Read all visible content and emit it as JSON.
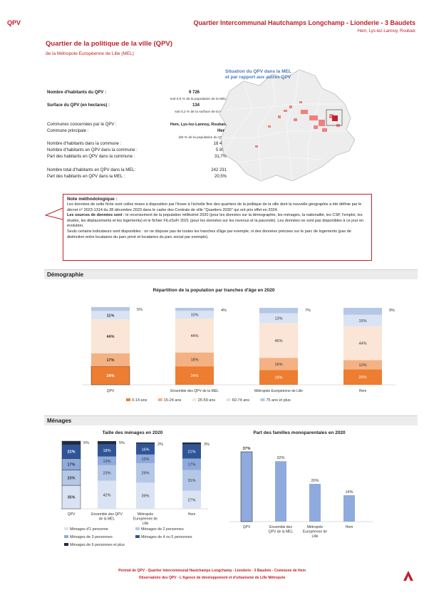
{
  "header": {
    "left": "QPV",
    "right_title": "Quartier Intercommunal Hautchamps Longchamp - Lionderie - 3 Baudets",
    "right_sub": "Hem, Lys-lez-Lannoy, Roubaix"
  },
  "intro": {
    "title": "Quartier de la politique de la ville (QPV)",
    "subtitle": "de la Métropole Européenne de Lille (MEL)"
  },
  "stats": {
    "habitants_label": "Nombre d'habitants du QPV :",
    "habitants_value": "9 726",
    "habitants_note": "soit 0,8 % de la population de la MEL",
    "surface_label": "Surface du QPV (en hectares) :",
    "surface_value": "134",
    "surface_note": "soit 0,2 % de la surface de la MEL",
    "communes_label": "Communes concernées par le QPV :",
    "communes_value": "Hem, Lys-lez-Lannoy, Roubaix",
    "principale_label": "Commune principale :",
    "principale_value": "Hem",
    "principale_note": "(60 % de la population du QPV)",
    "hab_commune_label": "Nombre d'habitants dans la commune :",
    "hab_commune_value": "18 462",
    "hab_qpv_commune_label": "Nombre d'habitants en QPV dans la commune :",
    "hab_qpv_commune_value": "5 857",
    "part_commune_label": "Part des habitants en QPV dans la commune :",
    "part_commune_value": "31,7%",
    "total_mel_label": "Nombre total d'habitants en QPV dans la MEL:",
    "total_mel_value": "242 231",
    "part_mel_label": "Part des habitants en QPV dans la MEL :",
    "part_mel_value": "20,5%"
  },
  "map": {
    "title_line1": "Situation du QPV dans la MEL",
    "title_line2": "et par rapport aux autres QPV"
  },
  "note": {
    "title": "Note méthodologique :",
    "p1": "Les données de cette fiche sont celles mises à disposition par l'Insee à l'échelle fine des quartiers de la politique de la ville dont la nouvelle géographie a été définie par le décret n° 2023-1314 du 28 décembre 2023 dans le cadre des Contrats de ville \"Quartiers 2030\" qui ont pris effet en 2024.",
    "p2_bold": "Les sources de données sont :",
    "p2": " le recensement de la population millésimé 2020 (pour les données sur la démographie, les ménages, la nationalité, les CSP, l'emploi, les études, les déplacements et les logements) et le fichier FiLoSoFi 2021 (pour les données sur les revenus et la pauvreté). Les données ne sont pas disponibles à ce jour en évolution.",
    "p3": "Seuls certains indicateurs sont disponibles : on ne dispose pas de toutes les tranches d'âge par exemple, ni des données précises sur le parc de logements (pas de distinction entre locataires du parc privé et locataires du parc social par exemple)."
  },
  "sections": {
    "demographie": "Démographie",
    "menages": "Ménages"
  },
  "colors": {
    "red": "#c0202a",
    "age0": "#ed7d31",
    "age15": "#f4b183",
    "age25": "#fbe5d6",
    "age60": "#dae3f3",
    "age75": "#b4c7e7",
    "m1": "#dae3f3",
    "m2": "#b4c7e7",
    "m3": "#8faadc",
    "m45": "#2f5597",
    "m6": "#1f2a44",
    "mono": "#8faadc"
  },
  "charts": {
    "age": {
      "title": "Répartition de la population par tranches d'âge en 2020",
      "categories": [
        "QPV",
        "Ensemble des QPV de la MEL",
        "Métropole Européenne de Lille",
        "Hem"
      ],
      "series": [
        {
          "name": "0-14 ans",
          "values": [
            24,
            24,
            19,
            20
          ]
        },
        {
          "name": "15-24 ans",
          "values": [
            17,
            18,
            16,
            12
          ]
        },
        {
          "name": "25-59 ans",
          "values": [
            44,
            44,
            45,
            44
          ]
        },
        {
          "name": "60-74 ans",
          "values": [
            11,
            10,
            13,
            15
          ]
        },
        {
          "name": "75 ans et plus",
          "values": [
            5,
            4,
            7,
            9
          ]
        }
      ]
    },
    "taille": {
      "title": "Taille des ménages en 2020",
      "categories": [
        "QPV",
        "Ensemble des QPV de la MEL",
        "Métropole Européenne de Lille",
        "Hem"
      ],
      "series": [
        {
          "name": "Ménages d'1 personne",
          "values": [
            35,
            42,
            39,
            27
          ]
        },
        {
          "name": "Ménages de 2 personnes",
          "values": [
            23,
            23,
            29,
            31
          ]
        },
        {
          "name": "Ménages de 3 personnes",
          "values": [
            17,
            13,
            13,
            17
          ]
        },
        {
          "name": "Ménages de 4 ou 5 personnes",
          "values": [
            21,
            18,
            16,
            21
          ]
        },
        {
          "name": "Ménages de 6 personnes et plus",
          "values": [
            5,
            5,
            2,
            3
          ]
        }
      ]
    },
    "mono": {
      "title": "Part des familles monoparentales en 2020",
      "categories": [
        "QPV",
        "Ensemble des QPV de la MEL",
        "Métropole Européenne de Lille",
        "Hem"
      ],
      "values": [
        37,
        32,
        20,
        14
      ]
    }
  },
  "chart_data": [
    {
      "type": "bar",
      "title": "Répartition de la population par tranches d'âge en 2020",
      "categories": [
        "QPV",
        "Ensemble des QPV de la MEL",
        "Métropole Européenne de Lille",
        "Hem"
      ],
      "series": [
        {
          "name": "0-14 ans",
          "values": [
            24,
            24,
            19,
            20
          ]
        },
        {
          "name": "15-24 ans",
          "values": [
            17,
            18,
            16,
            12
          ]
        },
        {
          "name": "25-59 ans",
          "values": [
            44,
            44,
            45,
            44
          ]
        },
        {
          "name": "60-74 ans",
          "values": [
            11,
            10,
            13,
            15
          ]
        },
        {
          "name": "75 ans et plus",
          "values": [
            5,
            4,
            7,
            9
          ]
        }
      ]
    },
    {
      "type": "bar",
      "title": "Taille des ménages en 2020",
      "categories": [
        "QPV",
        "Ensemble des QPV de la MEL",
        "Métropole Européenne de Lille",
        "Hem"
      ],
      "series": [
        {
          "name": "Ménages d'1 personne",
          "values": [
            35,
            42,
            39,
            27
          ]
        },
        {
          "name": "Ménages de 2 personnes",
          "values": [
            23,
            23,
            29,
            31
          ]
        },
        {
          "name": "Ménages de 3 personnes",
          "values": [
            17,
            13,
            13,
            17
          ]
        },
        {
          "name": "Ménages de 4 ou 5 personnes",
          "values": [
            21,
            18,
            16,
            21
          ]
        },
        {
          "name": "Ménages de 6 personnes et plus",
          "values": [
            5,
            5,
            2,
            3
          ]
        }
      ]
    },
    {
      "type": "bar",
      "title": "Part des familles monoparentales en 2020",
      "categories": [
        "QPV",
        "Ensemble des QPV de la MEL",
        "Métropole Européenne de Lille",
        "Hem"
      ],
      "values": [
        37,
        32,
        20,
        14
      ]
    }
  ],
  "footer": {
    "line1": "Portrait de QPV - Quartier Intercommunal Hautchamps Longchamp - Lionderie - 3 Baudets - Commune de Hem",
    "line2": "Observatoire des QPV - L'Agence de développement et d'urbanisme de Lille Métropole"
  }
}
